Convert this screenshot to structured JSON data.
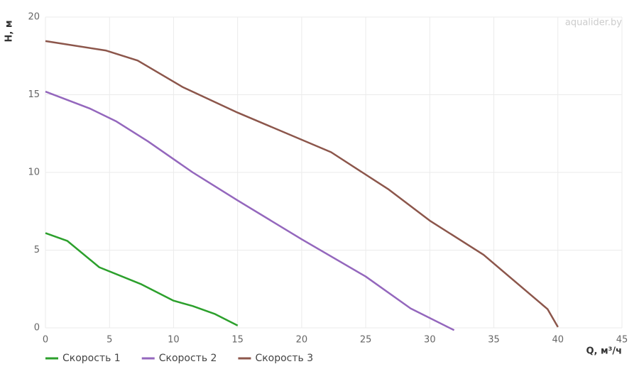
{
  "chart_data": {
    "type": "line",
    "watermark": "aqualider.by",
    "x_label": "Q, м³/ч",
    "y_label": "H, м",
    "xlim": [
      0,
      45
    ],
    "xticks": [
      0,
      5,
      10,
      15,
      20,
      25,
      30,
      35,
      40,
      45
    ],
    "ylim": [
      0,
      20
    ],
    "yticks": [
      0,
      5,
      10,
      15,
      20
    ],
    "grid": true,
    "legend": "bottom-left",
    "series": [
      {
        "name": "Скорость 1",
        "color": "#2ca02c",
        "x": [
          0,
          1.7,
          4.2,
          7.5,
          10,
          11.5,
          13.2,
          15
        ],
        "values": [
          6.1,
          5.6,
          3.9,
          2.8,
          1.75,
          1.4,
          0.9,
          0.15
        ]
      },
      {
        "name": "Скорость 2",
        "color": "#9467bd",
        "x": [
          0,
          3.5,
          5.5,
          8,
          11.5,
          15,
          20,
          25,
          28.5,
          31.9
        ],
        "values": [
          15.2,
          14.1,
          13.3,
          12.0,
          10.0,
          8.2,
          5.7,
          3.3,
          1.25,
          -0.15
        ]
      },
      {
        "name": "Скорость 3",
        "color": "#8c564b",
        "x": [
          0,
          4.7,
          7.2,
          10.7,
          15,
          22.3,
          26.8,
          30,
          34.2,
          39.2,
          40
        ],
        "values": [
          18.45,
          17.85,
          17.2,
          15.5,
          13.85,
          11.3,
          8.9,
          6.9,
          4.7,
          1.2,
          0.05
        ]
      }
    ]
  }
}
